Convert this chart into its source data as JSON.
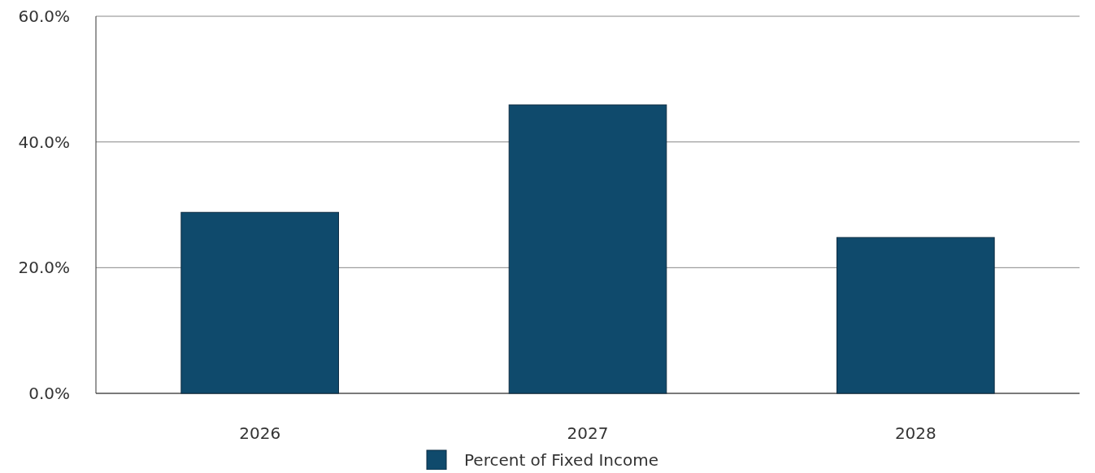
{
  "chart_data": {
    "type": "bar",
    "categories": [
      "2026",
      "2027",
      "2028"
    ],
    "series": [
      {
        "name": "Percent of Fixed Income",
        "color": "#0f4a6c",
        "values": [
          28.8,
          45.9,
          24.8
        ]
      }
    ],
    "ylim": [
      0,
      60
    ],
    "yticks": [
      {
        "value": 0,
        "label": "0.0%"
      },
      {
        "value": 20,
        "label": "20.0%"
      },
      {
        "value": 40,
        "label": "40.0%"
      },
      {
        "value": 60,
        "label": "60.0%"
      }
    ],
    "grid": "y",
    "legend": "bottom"
  }
}
